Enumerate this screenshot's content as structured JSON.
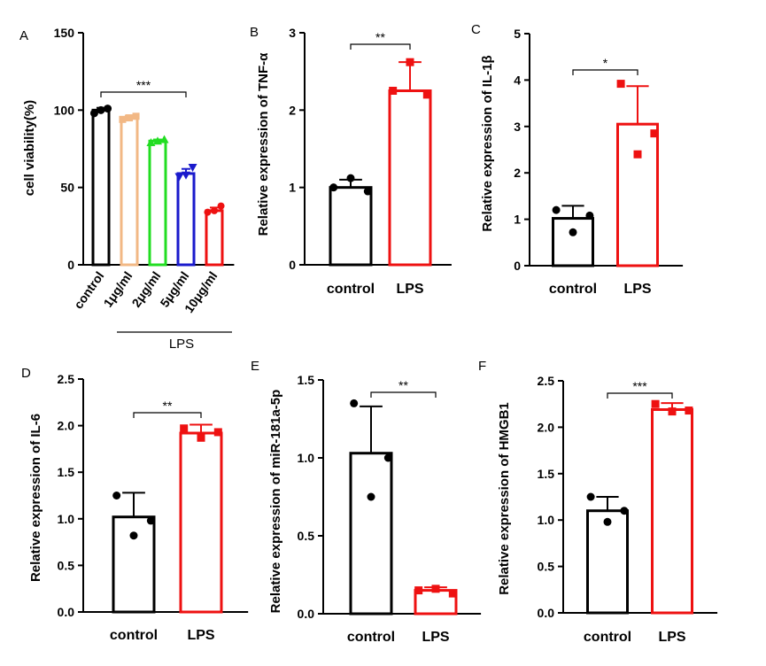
{
  "chart_data": [
    {
      "panel": "A",
      "type": "bar",
      "categories": [
        "control",
        "1μg/ml",
        "2μg/ml",
        "5μg/ml",
        "10μg/ml"
      ],
      "values": [
        100,
        95,
        80,
        59,
        35
      ],
      "points": [
        [
          98,
          100,
          101
        ],
        [
          94,
          95,
          96
        ],
        [
          79,
          80,
          81
        ],
        [
          57,
          58,
          63
        ],
        [
          34,
          35,
          38
        ]
      ],
      "errors": [
        1.5,
        1.5,
        1.0,
        3.0,
        2.0
      ],
      "colors": [
        "#000000",
        "#f2b885",
        "#22dd22",
        "#1a1acc",
        "#ee1111"
      ],
      "ylabel": "cell viability(%)",
      "ylim": [
        0,
        150
      ],
      "yticks": [
        0,
        50,
        100,
        150
      ],
      "group_label": "LPS",
      "significance": [
        {
          "from": 0,
          "to": 3,
          "label": "***"
        }
      ]
    },
    {
      "panel": "B",
      "type": "bar",
      "categories": [
        "control",
        "LPS"
      ],
      "values": [
        1.0,
        2.25
      ],
      "points": [
        [
          1.0,
          1.12,
          0.95
        ],
        [
          2.25,
          2.62,
          2.2
        ]
      ],
      "errors": [
        0.1,
        0.37
      ],
      "colors": [
        "#000000",
        "#ee1111"
      ],
      "ylabel": "Relative expression of TNF-α",
      "ylim": [
        0,
        3
      ],
      "yticks": [
        0,
        1,
        2,
        3
      ],
      "significance": [
        {
          "from": 0,
          "to": 1,
          "label": "**"
        }
      ]
    },
    {
      "panel": "C",
      "type": "bar",
      "categories": [
        "control",
        "LPS"
      ],
      "values": [
        1.02,
        3.05
      ],
      "points": [
        [
          1.2,
          0.72,
          1.08
        ],
        [
          3.92,
          2.4,
          2.85
        ]
      ],
      "errors": [
        0.27,
        0.82
      ],
      "colors": [
        "#000000",
        "#ee1111"
      ],
      "ylabel": "Relative expression of IL-1β",
      "ylim": [
        0,
        5
      ],
      "yticks": [
        0,
        1,
        2,
        3,
        4,
        5
      ],
      "significance": [
        {
          "from": 0,
          "to": 1,
          "label": "*"
        }
      ]
    },
    {
      "panel": "D",
      "type": "bar",
      "categories": [
        "control",
        "LPS"
      ],
      "values": [
        1.02,
        1.92
      ],
      "points": [
        [
          1.25,
          0.82,
          0.98
        ],
        [
          1.97,
          1.87,
          1.93
        ]
      ],
      "errors": [
        0.26,
        0.09
      ],
      "colors": [
        "#000000",
        "#ee1111"
      ],
      "ylabel": "Relative expression of IL-6",
      "ylim": [
        0,
        2.5
      ],
      "yticks": [
        0,
        0.5,
        1.0,
        1.5,
        2.0,
        2.5
      ],
      "yticklabels": [
        "0.0",
        "0.5",
        "1.0",
        "1.5",
        "2.0",
        "2.5"
      ],
      "significance": [
        {
          "from": 0,
          "to": 1,
          "label": "**"
        }
      ]
    },
    {
      "panel": "E",
      "type": "bar",
      "categories": [
        "control",
        "LPS"
      ],
      "values": [
        1.03,
        0.15
      ],
      "points": [
        [
          1.35,
          0.75,
          1.0
        ],
        [
          0.15,
          0.16,
          0.13
        ]
      ],
      "errors": [
        0.3,
        0.02
      ],
      "colors": [
        "#000000",
        "#ee1111"
      ],
      "ylabel": "Relative expression of miR-181a-5p",
      "ylim": [
        0,
        1.5
      ],
      "yticks": [
        0,
        0.5,
        1.0,
        1.5
      ],
      "yticklabels": [
        "0.0",
        "0.5",
        "1.0",
        "1.5"
      ],
      "significance": [
        {
          "from": 0,
          "to": 1,
          "label": "**"
        }
      ]
    },
    {
      "panel": "F",
      "type": "bar",
      "categories": [
        "control",
        "LPS"
      ],
      "values": [
        1.1,
        2.19
      ],
      "points": [
        [
          1.25,
          0.98,
          1.1
        ],
        [
          2.25,
          2.17,
          2.18
        ]
      ],
      "errors": [
        0.15,
        0.07
      ],
      "colors": [
        "#000000",
        "#ee1111"
      ],
      "ylabel": "Relative expression of HMGB1",
      "ylim": [
        0,
        2.5
      ],
      "yticks": [
        0,
        0.5,
        1.0,
        1.5,
        2.0,
        2.5
      ],
      "yticklabels": [
        "0.0",
        "0.5",
        "1.0",
        "1.5",
        "2.0",
        "2.5"
      ],
      "significance": [
        {
          "from": 0,
          "to": 1,
          "label": "***"
        }
      ]
    }
  ]
}
